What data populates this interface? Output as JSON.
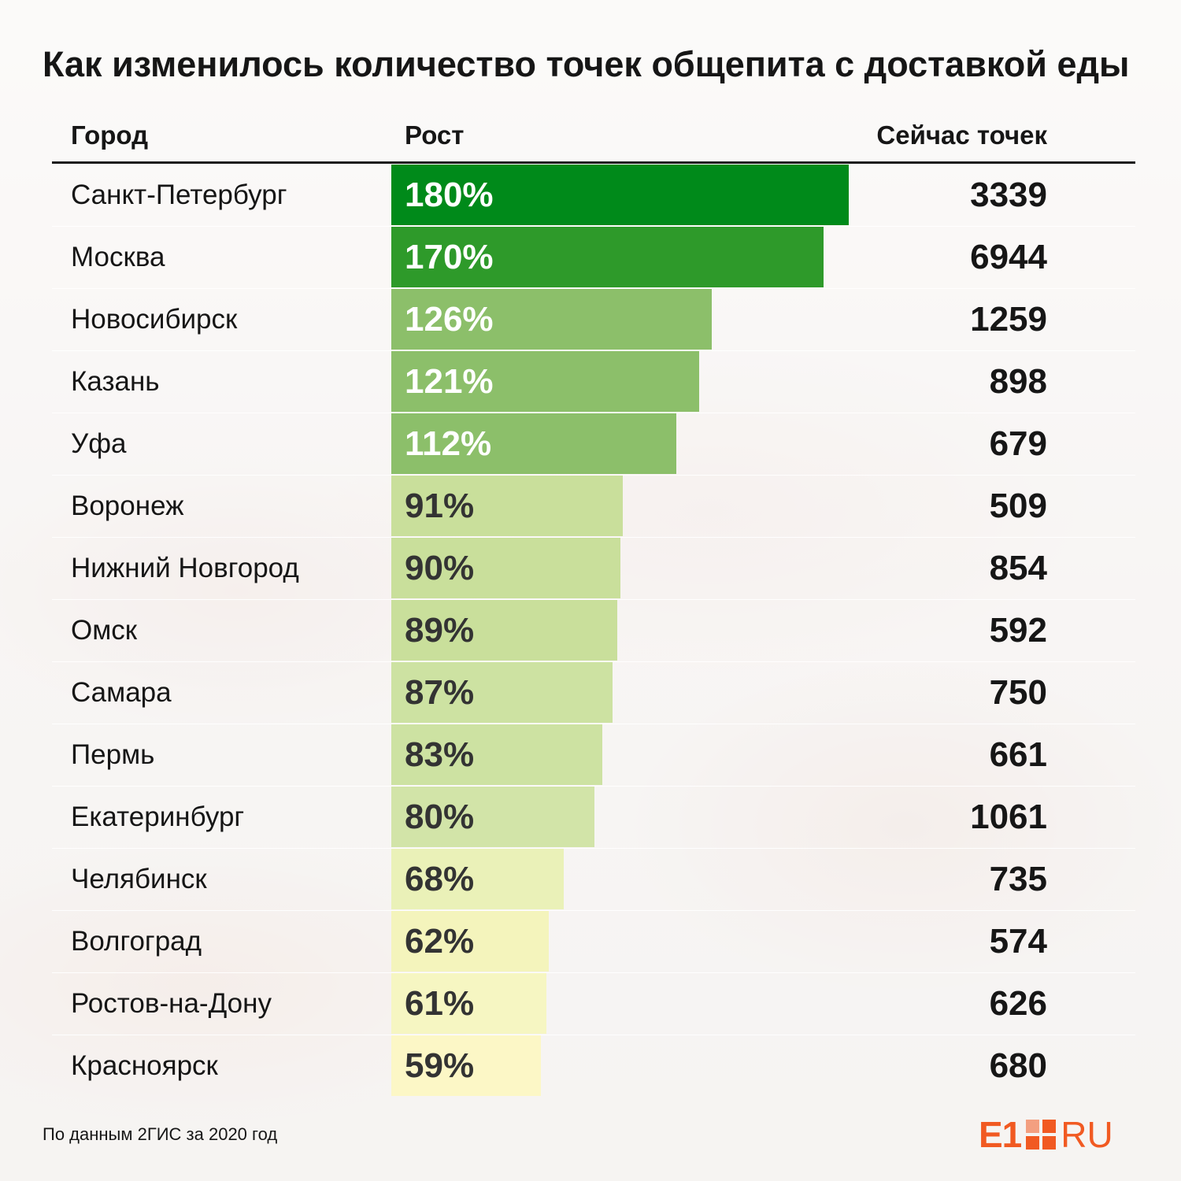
{
  "chart_data": {
    "type": "bar",
    "orientation": "horizontal",
    "title": "Как изменилось количество точек общепита с доставкой еды",
    "columns": {
      "city": "Город",
      "growth": "Рост",
      "count": "Сейчас точек"
    },
    "rows": [
      {
        "city": "Санкт-Петербург",
        "growth": 180,
        "growth_label": "180%",
        "count": "3339",
        "color": "#008a1a",
        "text_color": "#ffffff"
      },
      {
        "city": "Москва",
        "growth": 170,
        "growth_label": "170%",
        "count": "6944",
        "color": "#2e9a2a",
        "text_color": "#ffffff"
      },
      {
        "city": "Новосибирск",
        "growth": 126,
        "growth_label": "126%",
        "count": "1259",
        "color": "#8cbf6a",
        "text_color": "#ffffff"
      },
      {
        "city": "Казань",
        "growth": 121,
        "growth_label": "121%",
        "count": "898",
        "color": "#8cbf6a",
        "text_color": "#ffffff"
      },
      {
        "city": "Уфа",
        "growth": 112,
        "growth_label": "112%",
        "count": "679",
        "color": "#8cbf6a",
        "text_color": "#ffffff"
      },
      {
        "city": "Воронеж",
        "growth": 91,
        "growth_label": "91%",
        "count": "509",
        "color": "#c9df9b",
        "text_color": "#333333"
      },
      {
        "city": "Нижний Новгород",
        "growth": 90,
        "growth_label": "90%",
        "count": "854",
        "color": "#c9df9b",
        "text_color": "#333333"
      },
      {
        "city": "Омск",
        "growth": 89,
        "growth_label": "89%",
        "count": "592",
        "color": "#c9df9b",
        "text_color": "#333333"
      },
      {
        "city": "Самара",
        "growth": 87,
        "growth_label": "87%",
        "count": "750",
        "color": "#cde2a2",
        "text_color": "#333333"
      },
      {
        "city": "Пермь",
        "growth": 83,
        "growth_label": "83%",
        "count": "661",
        "color": "#cde2a2",
        "text_color": "#333333"
      },
      {
        "city": "Екатеринбург",
        "growth": 80,
        "growth_label": "80%",
        "count": "1061",
        "color": "#d2e4a8",
        "text_color": "#333333"
      },
      {
        "city": "Челябинск",
        "growth": 68,
        "growth_label": "68%",
        "count": "735",
        "color": "#eaf1b8",
        "text_color": "#333333"
      },
      {
        "city": "Волгоград",
        "growth": 62,
        "growth_label": "62%",
        "count": "574",
        "color": "#f4f4bc",
        "text_color": "#333333"
      },
      {
        "city": "Ростов-на-Дону",
        "growth": 61,
        "growth_label": "61%",
        "count": "626",
        "color": "#f6f6c2",
        "text_color": "#333333"
      },
      {
        "city": "Красноярск",
        "growth": 59,
        "growth_label": "59%",
        "count": "680",
        "color": "#fcf7c6",
        "text_color": "#333333"
      }
    ],
    "xlim": [
      0,
      180
    ]
  },
  "footer": {
    "source": "По данным 2ГИС за 2020 год",
    "logo_left": "E1",
    "logo_right": "RU",
    "brand_color": "#f15a22"
  }
}
